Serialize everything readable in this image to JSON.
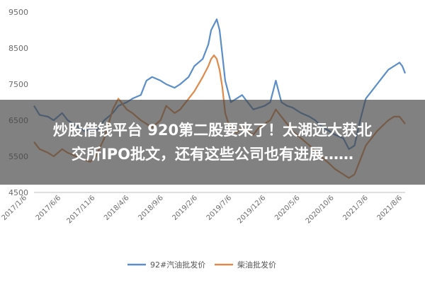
{
  "chart_data": {
    "type": "line",
    "title": "",
    "xlabel": "",
    "ylabel": "",
    "ylim": [
      4500,
      9500
    ],
    "yticks": [
      "9500",
      "8500",
      "7500",
      "6500",
      "5500",
      "4500"
    ],
    "xticks": [
      "2017/1/6",
      "2017/6/6",
      "2017/11/6",
      "2018/4/6",
      "2018/9/6",
      "2019/2/6",
      "2019/7/6",
      "2019/12/6",
      "2020/5/6",
      "2020/10/6",
      "2021/3/6",
      "2021/8/6"
    ],
    "grid": false,
    "legend": "bottom-center",
    "series": [
      {
        "name": "92#汽油批发价",
        "color": "#5b8ec9",
        "points": [
          [
            0,
            6900
          ],
          [
            2,
            6650
          ],
          [
            5,
            6600
          ],
          [
            7,
            6500
          ],
          [
            10,
            6700
          ],
          [
            12,
            6500
          ],
          [
            15,
            6350
          ],
          [
            18,
            6200
          ],
          [
            20,
            6250
          ],
          [
            22,
            6200
          ],
          [
            25,
            6500
          ],
          [
            28,
            6700
          ],
          [
            30,
            6900
          ],
          [
            33,
            7000
          ],
          [
            35,
            7100
          ],
          [
            38,
            7200
          ],
          [
            40,
            7600
          ],
          [
            42,
            7700
          ],
          [
            45,
            7600
          ],
          [
            47,
            7500
          ],
          [
            50,
            7400
          ],
          [
            52,
            7500
          ],
          [
            55,
            7700
          ],
          [
            57,
            8000
          ],
          [
            60,
            8200
          ],
          [
            62,
            8600
          ],
          [
            63,
            9000
          ],
          [
            64,
            9150
          ],
          [
            65,
            9300
          ],
          [
            66,
            9000
          ],
          [
            67,
            8300
          ],
          [
            68,
            7600
          ],
          [
            70,
            7000
          ],
          [
            72,
            7100
          ],
          [
            74,
            7200
          ],
          [
            76,
            7000
          ],
          [
            78,
            6800
          ],
          [
            80,
            6850
          ],
          [
            82,
            6900
          ],
          [
            84,
            7000
          ],
          [
            86,
            7600
          ],
          [
            88,
            7000
          ],
          [
            90,
            6900
          ],
          [
            92,
            6850
          ],
          [
            95,
            6700
          ],
          [
            98,
            6600
          ],
          [
            100,
            6500
          ],
          [
            102,
            6350
          ],
          [
            105,
            6200
          ],
          [
            107,
            6100
          ],
          [
            110,
            6000
          ],
          [
            112,
            5700
          ],
          [
            114,
            5800
          ],
          [
            116,
            6500
          ],
          [
            118,
            7100
          ],
          [
            120,
            7300
          ],
          [
            122,
            7500
          ],
          [
            124,
            7700
          ],
          [
            126,
            7900
          ],
          [
            128,
            8000
          ],
          [
            130,
            8100
          ],
          [
            131,
            8000
          ],
          [
            132,
            7800
          ]
        ]
      },
      {
        "name": "柴油批发价",
        "color": "#dd8a4a",
        "points": [
          [
            0,
            5900
          ],
          [
            2,
            5700
          ],
          [
            5,
            5600
          ],
          [
            7,
            5500
          ],
          [
            10,
            5700
          ],
          [
            12,
            5600
          ],
          [
            15,
            5500
          ],
          [
            18,
            5400
          ],
          [
            20,
            5350
          ],
          [
            22,
            5500
          ],
          [
            25,
            6000
          ],
          [
            28,
            6800
          ],
          [
            30,
            7100
          ],
          [
            33,
            6800
          ],
          [
            35,
            6700
          ],
          [
            38,
            6500
          ],
          [
            40,
            6400
          ],
          [
            42,
            6300
          ],
          [
            45,
            6500
          ],
          [
            47,
            6900
          ],
          [
            50,
            6700
          ],
          [
            52,
            6800
          ],
          [
            55,
            7100
          ],
          [
            57,
            7300
          ],
          [
            60,
            7700
          ],
          [
            62,
            8000
          ],
          [
            63,
            8200
          ],
          [
            64,
            8300
          ],
          [
            65,
            8200
          ],
          [
            66,
            7900
          ],
          [
            67,
            7400
          ],
          [
            68,
            6700
          ],
          [
            70,
            6200
          ],
          [
            72,
            6150
          ],
          [
            74,
            6300
          ],
          [
            76,
            6200
          ],
          [
            78,
            6100
          ],
          [
            80,
            6300
          ],
          [
            82,
            6400
          ],
          [
            84,
            6500
          ],
          [
            86,
            6800
          ],
          [
            88,
            6600
          ],
          [
            90,
            6400
          ],
          [
            92,
            6200
          ],
          [
            95,
            6000
          ],
          [
            98,
            5800
          ],
          [
            100,
            5650
          ],
          [
            102,
            5500
          ],
          [
            105,
            5300
          ],
          [
            107,
            5150
          ],
          [
            110,
            5000
          ],
          [
            112,
            4900
          ],
          [
            114,
            5000
          ],
          [
            116,
            5400
          ],
          [
            118,
            5800
          ],
          [
            120,
            6000
          ],
          [
            122,
            6200
          ],
          [
            124,
            6350
          ],
          [
            126,
            6500
          ],
          [
            128,
            6600
          ],
          [
            130,
            6600
          ],
          [
            131,
            6500
          ],
          [
            132,
            6400
          ]
        ]
      }
    ]
  },
  "overlay": {
    "title_line1": "炒股借钱平台 920第二股要来了！太湖远大获北",
    "title_line2": "交所IPO批文，还有这些公司也有进展……"
  }
}
